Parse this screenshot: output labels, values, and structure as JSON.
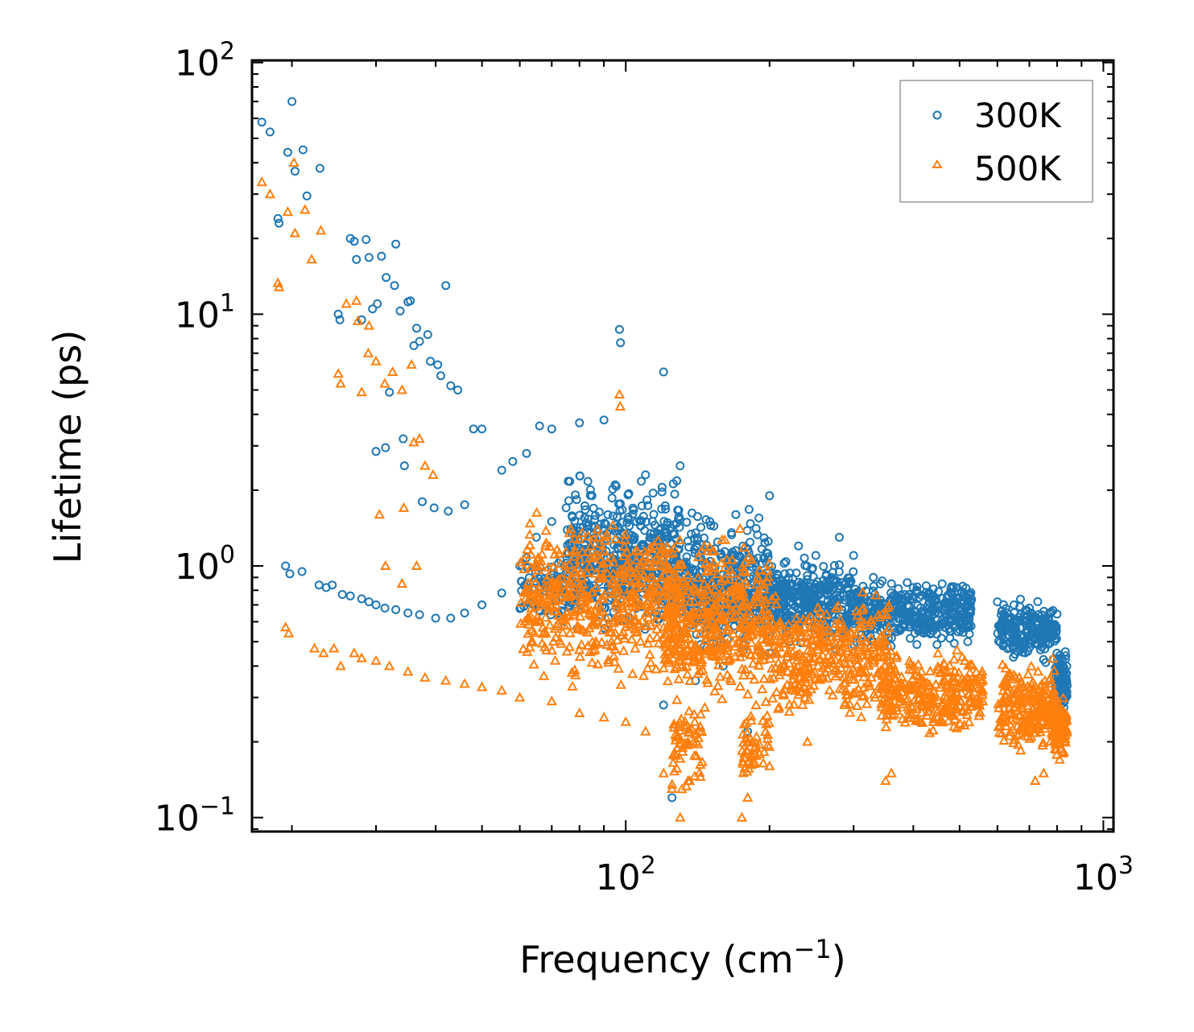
{
  "chart_data": {
    "type": "scatter",
    "title": "",
    "xlabel": "Frequency (cm",
    "xlabel_sup": "−1",
    "xlabel_end": ")",
    "ylabel": "Lifetime (ps)",
    "xscale": "log",
    "yscale": "log",
    "xlim": [
      16.5,
      1050
    ],
    "ylim": [
      0.088,
      102
    ],
    "x_ticks": [
      {
        "value": 100,
        "base": "10",
        "exp": "2"
      },
      {
        "value": 1000,
        "base": "10",
        "exp": "3"
      }
    ],
    "y_ticks": [
      {
        "value": 0.1,
        "base": "10",
        "exp": "−1"
      },
      {
        "value": 1,
        "base": "10",
        "exp": "0"
      },
      {
        "value": 10,
        "base": "10",
        "exp": "1"
      },
      {
        "value": 100,
        "base": "10",
        "exp": "2"
      }
    ],
    "legend_position": "top-right",
    "series": [
      {
        "name": "300K",
        "marker": "circle",
        "color": "#1f77b4",
        "points": [
          [
            17.3,
            58
          ],
          [
            18,
            53
          ],
          [
            19.6,
            44
          ],
          [
            21.1,
            45
          ],
          [
            20.3,
            37
          ],
          [
            22.9,
            38
          ],
          [
            21.5,
            29.5
          ],
          [
            20,
            70
          ],
          [
            18.7,
            24
          ],
          [
            18.8,
            23
          ],
          [
            26.5,
            20
          ],
          [
            27,
            19.5
          ],
          [
            27.3,
            16.5
          ],
          [
            28.6,
            19.8
          ],
          [
            29,
            16.8
          ],
          [
            30.2,
            11
          ],
          [
            30.8,
            17
          ],
          [
            33,
            19
          ],
          [
            31.5,
            14
          ],
          [
            32.8,
            13
          ],
          [
            25,
            10
          ],
          [
            25.2,
            9.5
          ],
          [
            28,
            9.5
          ],
          [
            29.5,
            10.5
          ],
          [
            35,
            11.2
          ],
          [
            35.4,
            11.3
          ],
          [
            36.5,
            8.8
          ],
          [
            33.7,
            10.3
          ],
          [
            37,
            7.8
          ],
          [
            38.5,
            8.3
          ],
          [
            42,
            13
          ],
          [
            40.4,
            6.3
          ],
          [
            41,
            5.7
          ],
          [
            43,
            5.2
          ],
          [
            44.5,
            5.0
          ],
          [
            36,
            7.5
          ],
          [
            39,
            6.5
          ],
          [
            32,
            4.9
          ],
          [
            30,
            2.85
          ],
          [
            31.4,
            2.95
          ],
          [
            34.2,
            3.2
          ],
          [
            34.4,
            2.5
          ],
          [
            37.5,
            1.8
          ],
          [
            39.7,
            1.7
          ],
          [
            42.5,
            1.65
          ],
          [
            46,
            1.75
          ],
          [
            48,
            3.5
          ],
          [
            50,
            3.5
          ],
          [
            55,
            2.4
          ],
          [
            58,
            2.6
          ],
          [
            62,
            2.8
          ],
          [
            66,
            3.6
          ],
          [
            70,
            3.5
          ],
          [
            80,
            3.7
          ],
          [
            90,
            3.8
          ],
          [
            97,
            8.7
          ],
          [
            97.5,
            7.7
          ],
          [
            120,
            5.9
          ],
          [
            19.4,
            1.0
          ],
          [
            19.8,
            0.93
          ],
          [
            21,
            0.95
          ],
          [
            22.8,
            0.84
          ],
          [
            23.6,
            0.82
          ],
          [
            24.3,
            0.84
          ],
          [
            25.5,
            0.77
          ],
          [
            26.5,
            0.76
          ],
          [
            28,
            0.74
          ],
          [
            29,
            0.72
          ],
          [
            30,
            0.7
          ],
          [
            31.3,
            0.68
          ],
          [
            33,
            0.67
          ],
          [
            35,
            0.65
          ],
          [
            37,
            0.64
          ],
          [
            40,
            0.62
          ],
          [
            43,
            0.62
          ],
          [
            46,
            0.65
          ],
          [
            50,
            0.7
          ],
          [
            55,
            0.78
          ],
          [
            60,
            1.0
          ],
          [
            65,
            1.3
          ],
          [
            70,
            1.5
          ],
          [
            75,
            1.7
          ],
          [
            85,
            1.9
          ],
          [
            95,
            2.1
          ],
          [
            110,
            2.3
          ],
          [
            130,
            2.5
          ],
          [
            150,
            1.5
          ],
          [
            170,
            1.6
          ],
          [
            190,
            1.55
          ],
          [
            200,
            1.9
          ],
          [
            230,
            1.2
          ],
          [
            250,
            1.1
          ],
          [
            280,
            1.3
          ],
          [
            300,
            1.1
          ],
          [
            330,
            0.9
          ],
          [
            360,
            0.85
          ],
          [
            400,
            0.82
          ],
          [
            450,
            0.7
          ],
          [
            520,
            0.5
          ],
          [
            600,
            0.72
          ],
          [
            650,
            0.7
          ],
          [
            700,
            0.68
          ],
          [
            750,
            0.6
          ],
          [
            800,
            0.45
          ],
          [
            820,
            0.35
          ],
          [
            830,
            0.3
          ],
          [
            125,
            0.12
          ],
          [
            120,
            0.28
          ],
          [
            140,
            0.35
          ],
          [
            160,
            0.4
          ],
          [
            180,
            0.22
          ],
          [
            200,
            0.45
          ],
          [
            220,
            0.5
          ],
          [
            260,
            0.6
          ],
          [
            300,
            0.65
          ],
          [
            350,
            0.7
          ],
          [
            420,
            0.6
          ],
          [
            480,
            0.55
          ]
        ],
        "clusters": [
          {
            "x": [
              75,
              130
            ],
            "y": [
              0.45,
              2.6
            ],
            "n": 500
          },
          {
            "x": [
              130,
              200
            ],
            "y": [
              0.4,
              1.8
            ],
            "n": 380
          },
          {
            "x": [
              200,
              300
            ],
            "y": [
              0.45,
              1.15
            ],
            "n": 340
          },
          {
            "x": [
              300,
              530
            ],
            "y": [
              0.45,
              0.95
            ],
            "n": 400
          },
          {
            "x": [
              600,
              800
            ],
            "y": [
              0.4,
              0.76
            ],
            "n": 220
          },
          {
            "x": [
              790,
              840
            ],
            "y": [
              0.25,
              0.5
            ],
            "n": 80
          },
          {
            "x": [
              60,
              80
            ],
            "y": [
              0.55,
              1.2
            ],
            "n": 90
          }
        ]
      },
      {
        "name": "500K",
        "marker": "triangle",
        "color": "#ff7f0e",
        "points": [
          [
            17.3,
            33.5
          ],
          [
            18,
            30
          ],
          [
            19.6,
            25.5
          ],
          [
            20.3,
            21
          ],
          [
            21.3,
            26
          ],
          [
            22,
            16.5
          ],
          [
            23,
            21.5
          ],
          [
            20.2,
            40
          ],
          [
            18.7,
            13.3
          ],
          [
            18.8,
            12.8
          ],
          [
            26,
            11
          ],
          [
            27.3,
            11.3
          ],
          [
            27.5,
            9.4
          ],
          [
            29,
            9
          ],
          [
            25,
            5.8
          ],
          [
            25.3,
            5.3
          ],
          [
            28,
            4.9
          ],
          [
            28.9,
            7
          ],
          [
            30,
            6.5
          ],
          [
            31.3,
            5.3
          ],
          [
            32.5,
            5.9
          ],
          [
            34,
            5
          ],
          [
            35.6,
            6.3
          ],
          [
            36,
            3.1
          ],
          [
            37,
            3.2
          ],
          [
            38,
            2.5
          ],
          [
            39.5,
            2.3
          ],
          [
            30.5,
            1.6
          ],
          [
            34.3,
            1.7
          ],
          [
            31.4,
            1.0
          ],
          [
            34,
            0.85
          ],
          [
            36.5,
            1.0
          ],
          [
            97,
            4.8
          ],
          [
            97.4,
            4.3
          ],
          [
            19.4,
            0.57
          ],
          [
            19.7,
            0.54
          ],
          [
            22.3,
            0.47
          ],
          [
            23.3,
            0.45
          ],
          [
            24.5,
            0.47
          ],
          [
            25.3,
            0.4
          ],
          [
            27,
            0.45
          ],
          [
            28,
            0.43
          ],
          [
            30,
            0.42
          ],
          [
            32,
            0.4
          ],
          [
            35,
            0.38
          ],
          [
            38,
            0.36
          ],
          [
            42,
            0.35
          ],
          [
            46,
            0.34
          ],
          [
            50,
            0.33
          ],
          [
            55,
            0.32
          ],
          [
            60,
            0.3
          ],
          [
            70,
            0.29
          ],
          [
            80,
            0.26
          ],
          [
            90,
            0.25
          ],
          [
            100,
            0.24
          ],
          [
            110,
            0.22
          ],
          [
            120,
            0.15
          ],
          [
            125,
            0.13
          ],
          [
            130,
            0.1
          ],
          [
            135,
            0.14
          ],
          [
            175,
            0.1
          ],
          [
            180,
            0.12
          ],
          [
            200,
            0.16
          ],
          [
            240,
            0.2
          ],
          [
            350,
            0.14
          ],
          [
            360,
            0.15
          ],
          [
            720,
            0.14
          ],
          [
            750,
            0.15
          ],
          [
            810,
            0.17
          ]
        ],
        "clusters": [
          {
            "x": [
              60,
              130
            ],
            "y": [
              0.3,
              1.8
            ],
            "n": 520
          },
          {
            "x": [
              120,
              200
            ],
            "y": [
              0.22,
              1.6
            ],
            "n": 420
          },
          {
            "x": [
              125,
              145
            ],
            "y": [
              0.11,
              0.35
            ],
            "n": 60
          },
          {
            "x": [
              175,
              200
            ],
            "y": [
              0.12,
              0.3
            ],
            "n": 50
          },
          {
            "x": [
              200,
              360
            ],
            "y": [
              0.22,
              0.9
            ],
            "n": 360
          },
          {
            "x": [
              340,
              560
            ],
            "y": [
              0.2,
              0.5
            ],
            "n": 300
          },
          {
            "x": [
              600,
              800
            ],
            "y": [
              0.17,
              0.46
            ],
            "n": 240
          },
          {
            "x": [
              790,
              840
            ],
            "y": [
              0.16,
              0.32
            ],
            "n": 90
          }
        ]
      }
    ]
  }
}
